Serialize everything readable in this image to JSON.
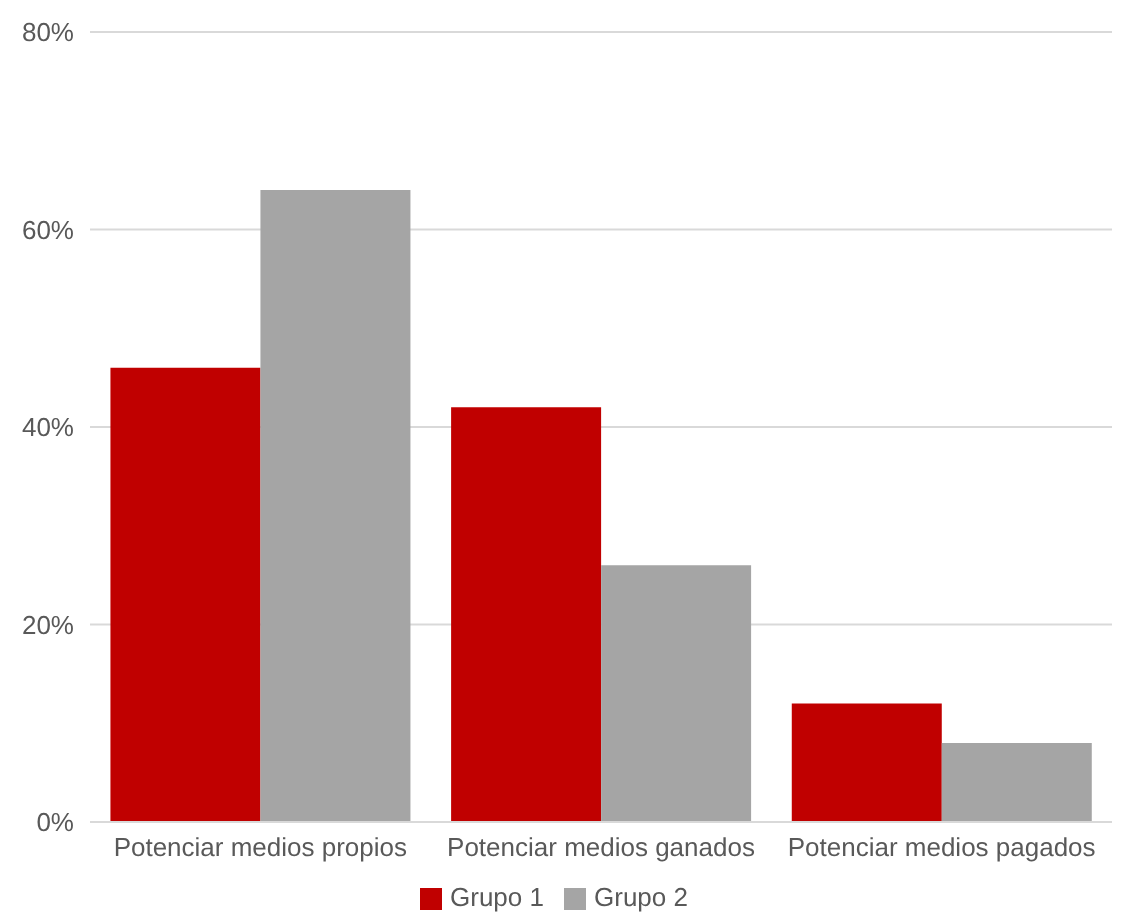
{
  "chart_data": {
    "type": "bar",
    "categories": [
      "Potenciar medios propios",
      "Potenciar medios ganados",
      "Potenciar medios pagados"
    ],
    "series": [
      {
        "name": "Grupo 1",
        "color": "#c00000",
        "values": [
          46,
          42,
          12
        ]
      },
      {
        "name": "Grupo 2",
        "color": "#a5a5a5",
        "values": [
          64,
          26,
          8
        ]
      }
    ],
    "ylim": [
      0,
      80
    ],
    "yticks": [
      {
        "value": 0,
        "label": "0%"
      },
      {
        "value": 20,
        "label": "20%"
      },
      {
        "value": 40,
        "label": "40%"
      },
      {
        "value": 60,
        "label": "60%"
      },
      {
        "value": 80,
        "label": "80%"
      }
    ],
    "grid": "y",
    "legend": "bottom"
  }
}
